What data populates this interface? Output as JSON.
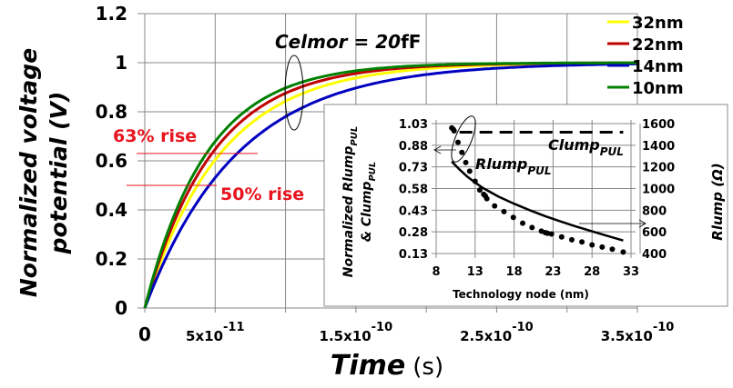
{
  "chart_data": [
    {
      "type": "line",
      "title": "",
      "xlabel": "Time",
      "xlabel_unit": "(s)",
      "ylabel_line1": "Normalized voltage",
      "ylabel_line2": "potential (V)",
      "xlim": [
        0,
        3.5e-10
      ],
      "ylim": [
        0,
        1.2
      ],
      "grid": true,
      "legend_position": "right-top",
      "x_ticks": [
        {
          "value": 0,
          "label": "0",
          "sup": ""
        },
        {
          "value": 5e-11,
          "label": "5x10",
          "sup": "-11"
        },
        {
          "value": 1.5e-10,
          "label": "1.5x10",
          "sup": "-10"
        },
        {
          "value": 2.5e-10,
          "label": "2.5x10",
          "sup": "-10"
        },
        {
          "value": 3.5e-10,
          "label": "3.5x10",
          "sup": "-10"
        }
      ],
      "x_gridlines": [
        0,
        5e-11,
        1e-10,
        1.5e-10,
        2e-10,
        2.5e-10,
        3e-10,
        3.5e-10
      ],
      "y_ticks": [
        "0",
        "0.2",
        "0.4",
        "0.6",
        "0.8",
        "1",
        "1.2"
      ],
      "y_tick_values": [
        0,
        0.2,
        0.4,
        0.6,
        0.8,
        1.0,
        1.2
      ],
      "series": [
        {
          "name": "32nm",
          "color": "#ffff00",
          "tau": 5.4e-11
        },
        {
          "name": "22nm",
          "color": "#c00000",
          "tau": 4.8e-11
        },
        {
          "name": "14nm",
          "color": "#0000c0",
          "tau": 6.6e-11
        },
        {
          "name": "10nm",
          "color": "#008000",
          "tau": 4.4e-11
        }
      ],
      "series_formula": "V(t) = 1 - exp(-t/tau)",
      "annotations": {
        "celmor": "Celmor = 20",
        "celmor_unit": "fF",
        "rise63": "63% rise",
        "rise50": "50% rise",
        "rise63_level": 0.63,
        "rise50_level": 0.5,
        "annotation_color": "#e8141e"
      }
    },
    {
      "type": "scatter",
      "title": "",
      "xlabel": "Technology node (nm)",
      "ylabel_left_line1": "Normalized Rlump",
      "ylabel_left_sub1": "PUL",
      "ylabel_left_line2": "& Clump",
      "ylabel_left_sub2": "PUL",
      "ylabel_right": "Rlump (Ω)",
      "xlim": [
        8,
        33
      ],
      "ylim_left": [
        0.13,
        1.03
      ],
      "ylim_right": [
        400,
        1600
      ],
      "x_ticks": [
        "8",
        "13",
        "18",
        "23",
        "28",
        "33"
      ],
      "x_tick_values": [
        8,
        13,
        18,
        23,
        28,
        33
      ],
      "y_left_ticks": [
        "0.13",
        "0.28",
        "0.43",
        "0.58",
        "0.73",
        "0.88",
        "1.03"
      ],
      "y_left_tick_values": [
        0.13,
        0.28,
        0.43,
        0.58,
        0.73,
        0.88,
        1.03
      ],
      "y_right_ticks": [
        "400",
        "600",
        "800",
        "1000",
        "1200",
        "1400",
        "1600"
      ],
      "y_right_tick_values": [
        400,
        600,
        800,
        1000,
        1200,
        1400,
        1600
      ],
      "grid": true,
      "series": [
        {
          "name": "Rlump",
          "sub": "PUL",
          "style": "dotted-markers",
          "axis": "left",
          "points": [
            [
              10,
              1.0
            ],
            [
              10.2,
              0.99
            ],
            [
              10.3,
              0.98
            ],
            [
              10.8,
              0.9
            ],
            [
              11.3,
              0.83
            ],
            [
              11.8,
              0.76
            ],
            [
              12.3,
              0.7
            ],
            [
              13,
              0.63
            ],
            [
              13.6,
              0.57
            ],
            [
              14.1,
              0.54
            ],
            [
              14.3,
              0.53
            ],
            [
              14.5,
              0.51
            ],
            [
              15.5,
              0.46
            ],
            [
              16.7,
              0.42
            ],
            [
              17.9,
              0.38
            ],
            [
              19.1,
              0.34
            ],
            [
              20.3,
              0.31
            ],
            [
              21.5,
              0.285
            ],
            [
              22,
              0.275
            ],
            [
              22.3,
              0.27
            ],
            [
              22.8,
              0.265
            ],
            [
              24.1,
              0.245
            ],
            [
              25.4,
              0.225
            ],
            [
              26.7,
              0.21
            ],
            [
              28,
              0.19
            ],
            [
              29.3,
              0.175
            ],
            [
              30.6,
              0.16
            ],
            [
              32,
              0.14
            ]
          ]
        },
        {
          "name": "Clump",
          "sub": "PUL",
          "style": "dashed",
          "axis": "left",
          "points": [
            [
              11,
              0.97
            ],
            [
              32,
              0.97
            ]
          ]
        },
        {
          "name": "Rlump",
          "sub": "",
          "style": "solid",
          "axis": "right",
          "points": [
            [
              10,
              1250
            ],
            [
              11,
              1175
            ],
            [
              12,
              1110
            ],
            [
              13,
              1055
            ],
            [
              14,
              1005
            ],
            [
              16,
              925
            ],
            [
              18,
              860
            ],
            [
              20,
              800
            ],
            [
              22,
              745
            ],
            [
              24,
              695
            ],
            [
              26,
              648
            ],
            [
              28,
              605
            ],
            [
              30,
              562
            ],
            [
              32,
              520
            ]
          ]
        }
      ],
      "annotations": {
        "rlump_label": "Rlump",
        "rlump_sub": "PUL",
        "clump_label": "Clump",
        "clump_sub": "PUL"
      }
    }
  ]
}
